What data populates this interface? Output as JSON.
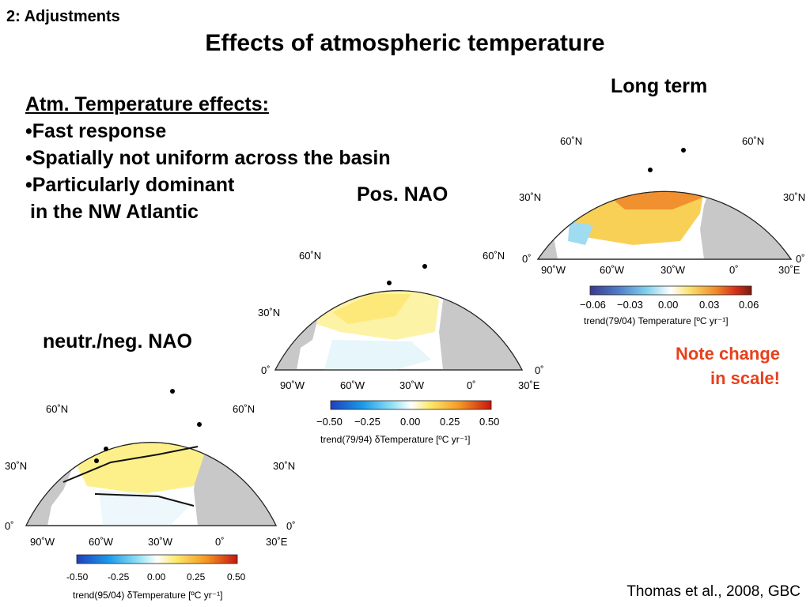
{
  "slide": {
    "section": "2: Adjustments",
    "title": "Effects of atmospheric temperature",
    "bullet_header": "Atm. Temperature effects:",
    "bullets": [
      "•Fast response",
      "•Spatially not uniform across the basin",
      "•Particularly dominant",
      " in the NW Atlantic"
    ],
    "note": [
      "Note change",
      "in scale!"
    ],
    "citation": "Thomas et al., 2008, GBC"
  },
  "colors": {
    "note": "#e8401c",
    "land": "#c8c8c8",
    "ocean": "#ffffff",
    "rivers": "#3a4fb5"
  },
  "panels": [
    {
      "id": "long-term",
      "title": "Long term",
      "lat_labels": [
        "60˚N",
        "60˚N",
        "30˚N",
        "30˚N",
        "0˚",
        "0˚"
      ],
      "lon_labels": [
        "90˚W",
        "60˚W",
        "30˚W",
        "0˚",
        "30˚E"
      ],
      "colorbar": {
        "ticks": [
          "−0.06",
          "−0.03",
          "0.00",
          "0.03",
          "0.06"
        ],
        "label": "trend(79/04) Temperature [ºC yr⁻¹]"
      }
    },
    {
      "id": "pos-nao",
      "title": "Pos. NAO",
      "lat_labels": [
        "60˚N",
        "60˚N",
        "30˚N",
        "0˚",
        "0˚"
      ],
      "lon_labels": [
        "90˚W",
        "60˚W",
        "30˚W",
        "0˚",
        "30˚E"
      ],
      "colorbar": {
        "ticks": [
          "−0.50",
          "−0.25",
          "0.00",
          "0.25",
          "0.50"
        ],
        "label": "trend(79/94) δTemperature [ºC yr⁻¹]"
      }
    },
    {
      "id": "neutr-neg-nao",
      "title": "neutr./neg. NAO",
      "lat_labels": [
        "60˚N",
        "60˚N",
        "30˚N",
        "30˚N",
        "0˚",
        "0˚"
      ],
      "lon_labels": [
        "90˚W",
        "60˚W",
        "30˚W",
        "0˚",
        "30˚E"
      ],
      "colorbar": {
        "ticks": [
          "-0.50",
          "-0.25",
          "0.00",
          "0.25",
          "0.50"
        ],
        "label": "trend(95/04) δTemperature [ºC yr⁻¹]"
      }
    }
  ]
}
